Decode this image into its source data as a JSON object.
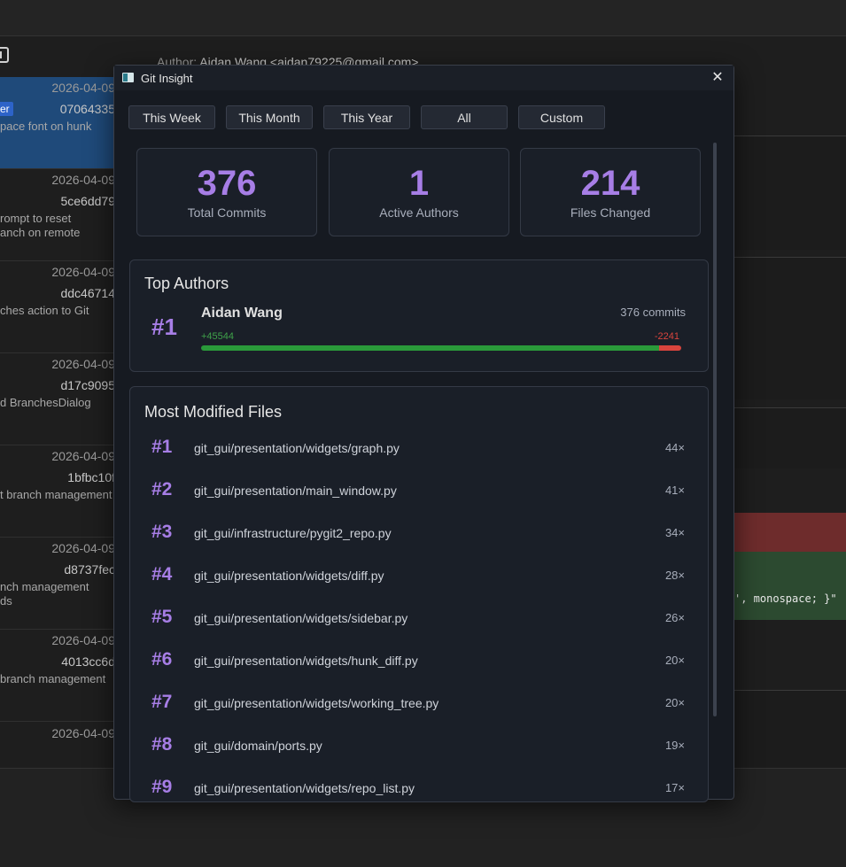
{
  "background": {
    "author_prefix": "Author:",
    "author_value": "Aidan Wang <aidan79225@gmail.com>",
    "code_line": "', monospace; }\"",
    "commits": [
      {
        "date": "2026-04-09",
        "hash": "07064335",
        "message": "pace font on hunk",
        "tag": "er",
        "selected": true
      },
      {
        "date": "2026-04-09",
        "hash": "5ce6dd79",
        "message": "rompt to reset\nanch on remote"
      },
      {
        "date": "2026-04-09",
        "hash": "ddc46714",
        "message": "ches action to Git"
      },
      {
        "date": "2026-04-09",
        "hash": "d17c9095",
        "message": "d BranchesDialog"
      },
      {
        "date": "2026-04-09",
        "hash": "1bfbc10f",
        "message": "t branch management"
      },
      {
        "date": "2026-04-09",
        "hash": "d8737fec",
        "message": "nch management\nds"
      },
      {
        "date": "2026-04-09",
        "hash": "4013cc6d",
        "message": "branch management"
      }
    ],
    "last_date": "2026-04-09"
  },
  "dialog": {
    "title": "Git Insight",
    "close_glyph": "✕",
    "filters": [
      "This Week",
      "This Month",
      "This Year",
      "All",
      "Custom"
    ],
    "stats": [
      {
        "value": "376",
        "label": "Total Commits"
      },
      {
        "value": "1",
        "label": "Active Authors"
      },
      {
        "value": "214",
        "label": "Files Changed"
      }
    ],
    "top_authors": {
      "title": "Top Authors",
      "items": [
        {
          "rank": "#1",
          "name": "Aidan Wang",
          "commits": "376 commits",
          "additions": "+45544",
          "deletions": "-2241",
          "additions_count": 45544,
          "deletions_count": 2241
        }
      ]
    },
    "files": {
      "title": "Most Modified Files",
      "items": [
        {
          "rank": "#1",
          "path": "git_gui/presentation/widgets/graph.py",
          "count": "44×"
        },
        {
          "rank": "#2",
          "path": "git_gui/presentation/main_window.py",
          "count": "41×"
        },
        {
          "rank": "#3",
          "path": "git_gui/infrastructure/pygit2_repo.py",
          "count": "34×"
        },
        {
          "rank": "#4",
          "path": "git_gui/presentation/widgets/diff.py",
          "count": "28×"
        },
        {
          "rank": "#5",
          "path": "git_gui/presentation/widgets/sidebar.py",
          "count": "26×"
        },
        {
          "rank": "#6",
          "path": "git_gui/presentation/widgets/hunk_diff.py",
          "count": "20×"
        },
        {
          "rank": "#7",
          "path": "git_gui/presentation/widgets/working_tree.py",
          "count": "20×"
        },
        {
          "rank": "#8",
          "path": "git_gui/domain/ports.py",
          "count": "19×"
        },
        {
          "rank": "#9",
          "path": "git_gui/presentation/widgets/repo_list.py",
          "count": "17×"
        }
      ]
    }
  },
  "colors": {
    "accent": "#a77ee6",
    "additions": "#2a9a3a",
    "deletions": "#d9443d"
  }
}
